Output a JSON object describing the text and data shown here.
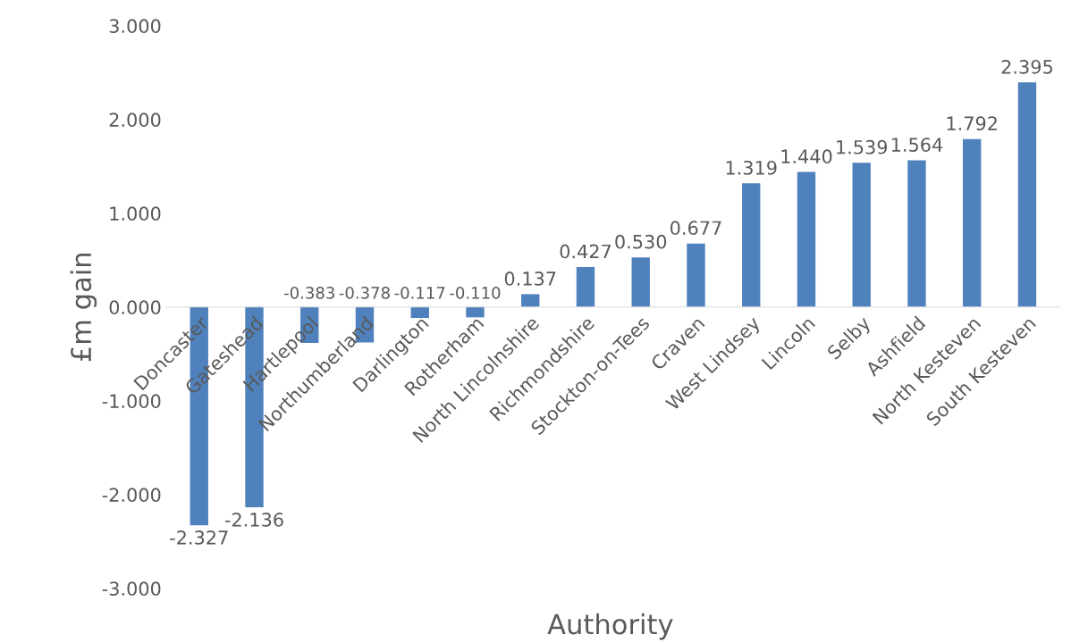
{
  "chart_data": {
    "type": "bar",
    "xlabel": "Authority",
    "ylabel": "£m gain",
    "categories": [
      "Doncaster",
      "Gateshead",
      "Hartlepool",
      "Northumberland",
      "Darlington",
      "Rotherham",
      "North Lincolnshire",
      "Richmondshire",
      "Stockton-on-Tees",
      "Craven",
      "West Lindsey",
      "Lincoln",
      "Selby",
      "Ashfield",
      "North Kesteven",
      "South Kesteven"
    ],
    "series": [
      {
        "color": "#4f81bd",
        "values": [
          -2.327,
          -2.136,
          -0.383,
          -0.378,
          -0.117,
          -0.11,
          0.137,
          0.427,
          0.53,
          0.677,
          1.319,
          1.44,
          1.539,
          1.564,
          1.792,
          2.395
        ],
        "value_labels": [
          "-2.327",
          "-2.136",
          "-0.383",
          "-0.378",
          "-0.117",
          "-0.110",
          "0.137",
          "0.427",
          "0.530",
          "0.677",
          "1.319",
          "1.440",
          "1.539",
          "1.564",
          "1.792",
          "2.395"
        ]
      }
    ],
    "ylim": [
      -3,
      3
    ],
    "yticks": [
      {
        "value": -3,
        "label": "-3.000"
      },
      {
        "value": -2,
        "label": "-2.000"
      },
      {
        "value": -1,
        "label": "-1.000"
      },
      {
        "value": 0,
        "label": "0.000"
      },
      {
        "value": 1,
        "label": "1.000"
      },
      {
        "value": 2,
        "label": "2.000"
      },
      {
        "value": 3,
        "label": "3.000"
      }
    ],
    "grid": false
  }
}
